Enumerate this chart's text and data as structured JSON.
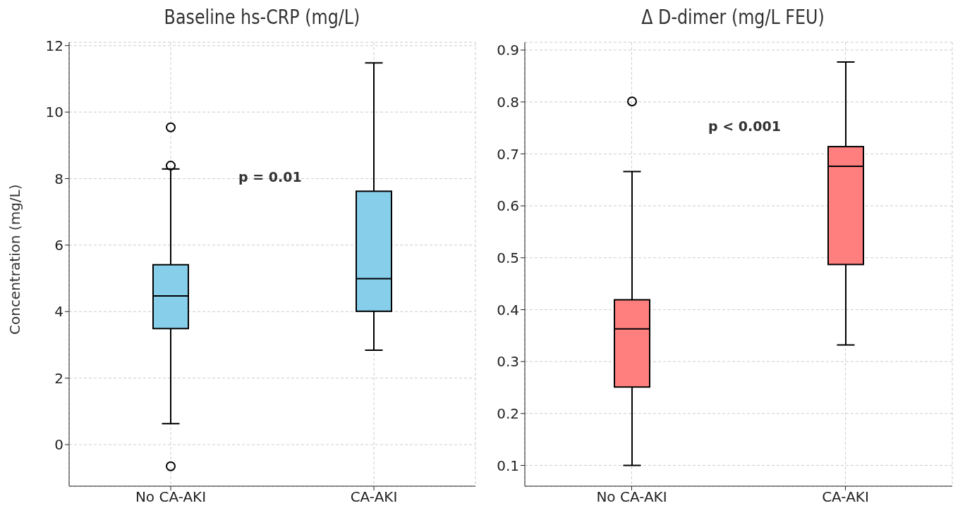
{
  "chart_data": [
    {
      "type": "box",
      "title": "Baseline hs-CRP (mg/L)",
      "ylabel": "Concentration (mg/L)",
      "categories": [
        "No CA-AKI",
        "CA-AKI"
      ],
      "color": "#87ceeb",
      "boxes": [
        {
          "low": 0.63,
          "q1": 3.49,
          "median": 4.47,
          "q3": 5.41,
          "high": 8.29,
          "outliers": [
            9.54,
            8.39,
            -0.65
          ]
        },
        {
          "low": 2.84,
          "q1": 4.01,
          "median": 4.99,
          "q3": 7.62,
          "high": 11.48
        }
      ],
      "ylim": [
        -1.25,
        12.1
      ],
      "yticks": [
        0,
        2,
        4,
        6,
        8,
        10,
        12
      ],
      "grid": true,
      "annotations": [
        "p = 0.01"
      ]
    },
    {
      "type": "box",
      "title": "Δ D-dimer (mg/L FEU)",
      "categories": [
        "No CA-AKI",
        "CA-AKI"
      ],
      "color": "#ff7f7f",
      "boxes": [
        {
          "low": 0.1,
          "q1": 0.251,
          "median": 0.363,
          "q3": 0.419,
          "high": 0.666,
          "outliers": [
            0.801
          ]
        },
        {
          "low": 0.332,
          "q1": 0.487,
          "median": 0.676,
          "q3": 0.714,
          "high": 0.877
        }
      ],
      "ylim": [
        0.06,
        0.915
      ],
      "yticks": [
        0.1,
        0.2,
        0.3,
        0.4,
        0.5,
        0.6,
        0.7,
        0.8,
        0.9
      ],
      "grid": true,
      "annotations": [
        "p < 0.001"
      ]
    }
  ]
}
